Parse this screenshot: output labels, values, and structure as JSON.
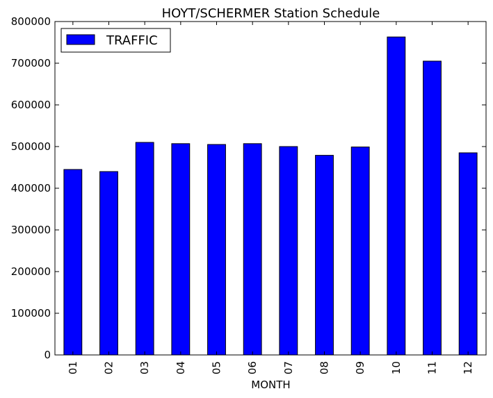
{
  "chart_data": {
    "type": "bar",
    "title": "HOYT/SCHERMER Station Schedule",
    "xlabel": "MONTH",
    "ylabel": "",
    "categories": [
      "01",
      "02",
      "03",
      "04",
      "05",
      "06",
      "07",
      "08",
      "09",
      "10",
      "11",
      "12"
    ],
    "series": [
      {
        "name": "TRAFFIC",
        "color": "#0000ff",
        "values": [
          445000,
          440000,
          510000,
          507000,
          505000,
          507000,
          500000,
          479000,
          499000,
          763000,
          705000,
          485000
        ]
      }
    ],
    "ylim": [
      0,
      800000
    ],
    "yticks": [
      0,
      100000,
      200000,
      300000,
      400000,
      500000,
      600000,
      700000,
      800000
    ],
    "ytick_labels": [
      "0",
      "100000",
      "200000",
      "300000",
      "400000",
      "500000",
      "600000",
      "700000",
      "800000"
    ],
    "grid": false,
    "legend_position": "top-left"
  }
}
